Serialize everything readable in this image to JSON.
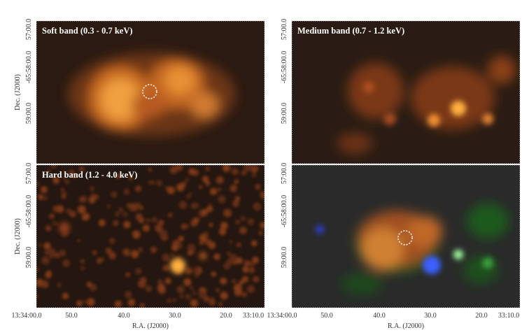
{
  "panels": [
    {
      "label": "Soft band (0.3 - 0.7 keV)"
    },
    {
      "label": "Medium band (0.7 - 1.2 keV)"
    },
    {
      "label": "Hard band (1.2 - 4.0 keV)"
    }
  ],
  "y_axis": {
    "title": "Dec. (J2000)",
    "ticks": [
      "57:00.0",
      "-65:58:00.0",
      "59:00.0"
    ]
  },
  "x_axis": {
    "title": "R.A. (J2000)",
    "ticks": [
      "13:34:00.0",
      "50.0",
      "40.0",
      "30.0",
      "20.0",
      "33:10.0"
    ]
  }
}
